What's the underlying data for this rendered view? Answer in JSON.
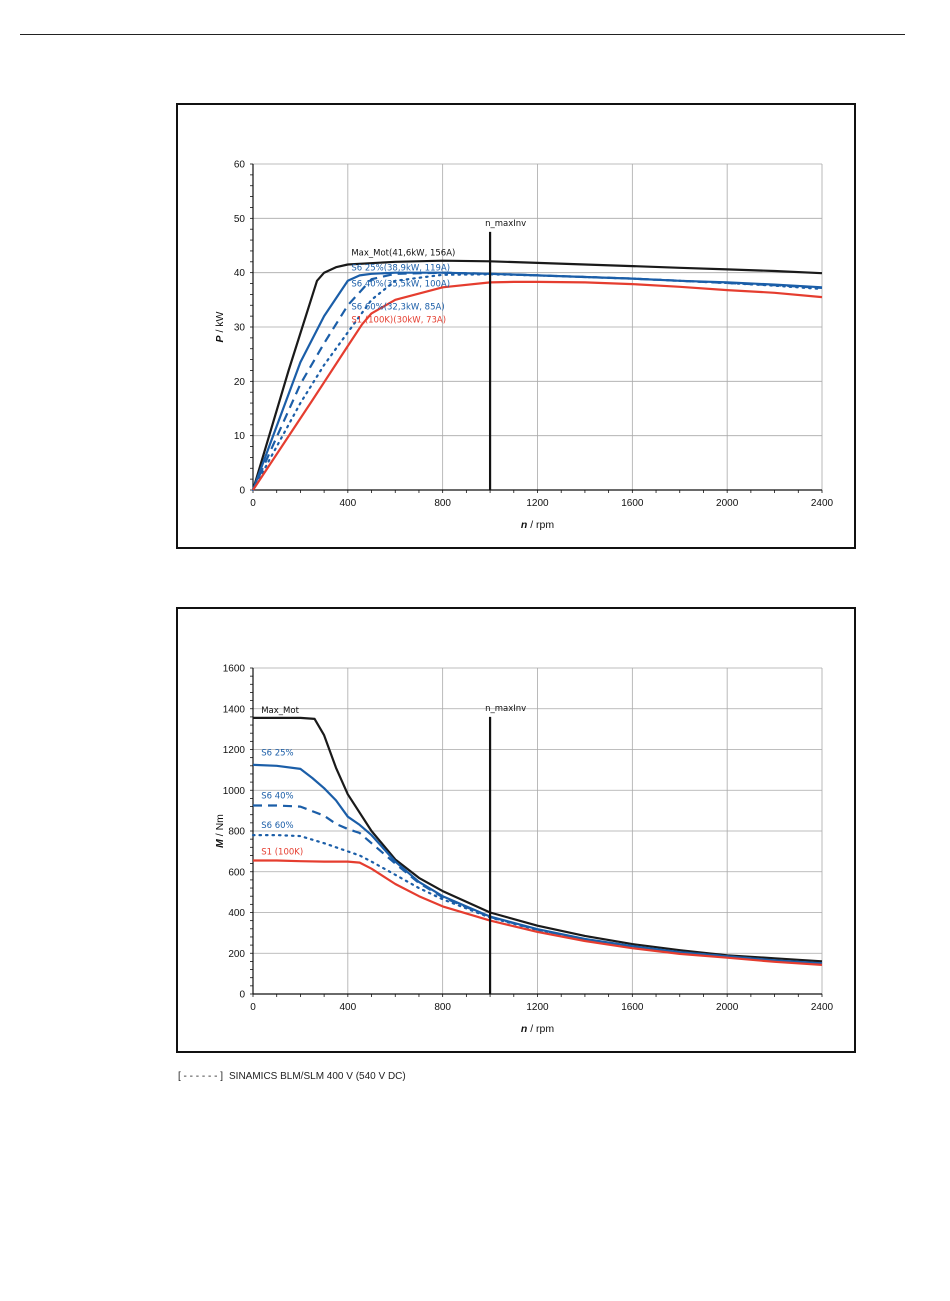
{
  "footnote": {
    "bracket": "[ - - - - - - ]",
    "text": "SINAMICS BLM/SLM 400 V (540 V DC)"
  },
  "colors": {
    "max_mot": "#1a1a1a",
    "s6": "#1b5ea8",
    "s1": "#e53d2f",
    "grid": "#a9a9a9",
    "marker": "#111111"
  },
  "chart_data": [
    {
      "type": "line",
      "xlabel_italic": "n",
      "xlabel_unit": "/ rpm",
      "ylabel_italic": "P",
      "ylabel_unit": "/ kW",
      "xlim": [
        0,
        2400
      ],
      "ylim": [
        0,
        60
      ],
      "xticks": [
        0,
        400,
        800,
        1200,
        1600,
        2000,
        2400
      ],
      "yticks": [
        0,
        10,
        20,
        30,
        40,
        50,
        60
      ],
      "grid": true,
      "marker_line": {
        "x": 1000,
        "label": "n_maxInv",
        "y_top": 47.5
      },
      "series": [
        {
          "name": "Max_Mot(41,6kW, 156A)",
          "color": "#1a1a1a",
          "dash": "solid",
          "width": 2.2,
          "label_at": [
            440,
            43.2
          ],
          "x": [
            0,
            150,
            270,
            300,
            350,
            400,
            600,
            800,
            1000,
            1200,
            1400,
            1600,
            1800,
            2000,
            2200,
            2400
          ],
          "y": [
            0,
            22,
            38.5,
            40,
            41,
            41.5,
            42,
            42.2,
            42.1,
            41.8,
            41.5,
            41.2,
            40.9,
            40.6,
            40.3,
            39.9
          ]
        },
        {
          "name": "S6 25%(38,9kW, 119A)",
          "color": "#1b5ea8",
          "dash": "solid",
          "width": 2.2,
          "label_at": [
            440,
            40.4
          ],
          "x": [
            0,
            200,
            300,
            400,
            450,
            500,
            600,
            800,
            1000,
            1200,
            1400,
            1600,
            1800,
            2000,
            2200,
            2400
          ],
          "y": [
            0,
            23.5,
            32,
            38.5,
            39.5,
            39.8,
            40,
            40,
            39.8,
            39.5,
            39.2,
            38.9,
            38.5,
            38.2,
            37.8,
            37.3
          ]
        },
        {
          "name": "S6 40%(35,5kW, 100A)",
          "color": "#1b5ea8",
          "dash": "dashed",
          "width": 2.2,
          "label_at": [
            440,
            37.5
          ],
          "x": [
            0,
            200,
            300,
            400,
            500,
            600,
            800,
            1000,
            1200,
            1400,
            1600,
            1800,
            2000,
            2200,
            2400
          ],
          "y": [
            0,
            19.5,
            27,
            34,
            38.8,
            39.8,
            40,
            39.8,
            39.5,
            39.2,
            38.9,
            38.5,
            38.1,
            37.7,
            37.2
          ]
        },
        {
          "name": "S6 60%(32,3kW, 85A)",
          "color": "#1b5ea8",
          "dash": "dotted",
          "width": 2.2,
          "label_at": [
            440,
            33.2
          ],
          "x": [
            0,
            200,
            300,
            400,
            450,
            500,
            600,
            800,
            1000,
            1200,
            1400,
            1600,
            1800,
            2000,
            2200,
            2400
          ],
          "y": [
            0,
            16,
            23,
            29,
            32,
            35,
            38.5,
            39.6,
            39.7,
            39.5,
            39.2,
            38.9,
            38.5,
            38.1,
            37.6,
            37
          ]
        },
        {
          "name": "S1 (100K)(30kW, 73A)",
          "color": "#e53d2f",
          "dash": "solid",
          "width": 2.2,
          "label_at": [
            440,
            30.8
          ],
          "x": [
            0,
            250,
            400,
            460,
            500,
            600,
            800,
            1000,
            1100,
            1200,
            1400,
            1600,
            1800,
            2000,
            2200,
            2400
          ],
          "y": [
            0,
            16.5,
            26.5,
            30.5,
            32.5,
            35,
            37.3,
            38.2,
            38.3,
            38.3,
            38.2,
            37.9,
            37.4,
            36.8,
            36.3,
            35.5
          ]
        }
      ]
    },
    {
      "type": "line",
      "xlabel_italic": "n",
      "xlabel_unit": "/ rpm",
      "ylabel_italic": "M",
      "ylabel_unit": "/ Nm",
      "xlim": [
        0,
        2400
      ],
      "ylim": [
        0,
        1600
      ],
      "xticks": [
        0,
        400,
        800,
        1200,
        1600,
        2000,
        2400
      ],
      "yticks": [
        0,
        200,
        400,
        600,
        800,
        1000,
        1200,
        1400,
        1600
      ],
      "grid": true,
      "marker_line": {
        "x": 1000,
        "label": "n_maxInv",
        "y_top": 1360
      },
      "series": [
        {
          "name": "Max_Mot",
          "color": "#1a1a1a",
          "dash": "solid",
          "width": 2.2,
          "label_at": [
            60,
            1380
          ],
          "x": [
            0,
            100,
            200,
            260,
            300,
            350,
            400,
            500,
            600,
            700,
            800,
            1000,
            1200,
            1400,
            1600,
            1800,
            2000,
            2200,
            2400
          ],
          "y": [
            1355,
            1355,
            1355,
            1350,
            1270,
            1110,
            980,
            800,
            660,
            570,
            505,
            400,
            335,
            285,
            245,
            215,
            190,
            175,
            160
          ]
        },
        {
          "name": "S6 25%",
          "color": "#1b5ea8",
          "dash": "solid",
          "width": 2.2,
          "label_at": [
            60,
            1170
          ],
          "x": [
            0,
            100,
            200,
            250,
            300,
            350,
            400,
            450,
            500,
            600,
            700,
            800,
            1000,
            1200,
            1400,
            1600,
            1800,
            2000,
            2200,
            2400
          ],
          "y": [
            1125,
            1120,
            1105,
            1060,
            1010,
            950,
            870,
            830,
            780,
            650,
            550,
            480,
            380,
            318,
            270,
            235,
            205,
            185,
            165,
            150
          ]
        },
        {
          "name": "S6 40%",
          "color": "#1b5ea8",
          "dash": "dashed",
          "width": 2.2,
          "label_at": [
            60,
            960
          ],
          "x": [
            0,
            100,
            200,
            300,
            350,
            400,
            450,
            500,
            600,
            700,
            800,
            1000,
            1200,
            1400,
            1600,
            1800,
            2000,
            2200,
            2400
          ],
          "y": [
            925,
            925,
            920,
            875,
            835,
            810,
            790,
            740,
            640,
            545,
            475,
            378,
            316,
            268,
            233,
            205,
            185,
            165,
            150
          ]
        },
        {
          "name": "S6 60%",
          "color": "#1b5ea8",
          "dash": "dotted",
          "width": 2.2,
          "label_at": [
            60,
            815
          ],
          "x": [
            0,
            100,
            200,
            300,
            350,
            400,
            450,
            500,
            600,
            700,
            800,
            1000,
            1200,
            1400,
            1600,
            1800,
            2000,
            2200,
            2400
          ],
          "y": [
            780,
            780,
            775,
            740,
            720,
            700,
            680,
            650,
            585,
            520,
            465,
            375,
            314,
            266,
            232,
            204,
            184,
            164,
            149
          ]
        },
        {
          "name": "S1 (100K)",
          "color": "#e53d2f",
          "dash": "solid",
          "width": 2.2,
          "label_at": [
            60,
            685
          ],
          "x": [
            0,
            100,
            200,
            300,
            400,
            450,
            500,
            600,
            700,
            800,
            1000,
            1200,
            1400,
            1600,
            1800,
            2000,
            2200,
            2400
          ],
          "y": [
            655,
            655,
            652,
            650,
            650,
            645,
            615,
            540,
            480,
            430,
            360,
            305,
            260,
            225,
            197,
            178,
            158,
            143
          ]
        }
      ]
    }
  ]
}
